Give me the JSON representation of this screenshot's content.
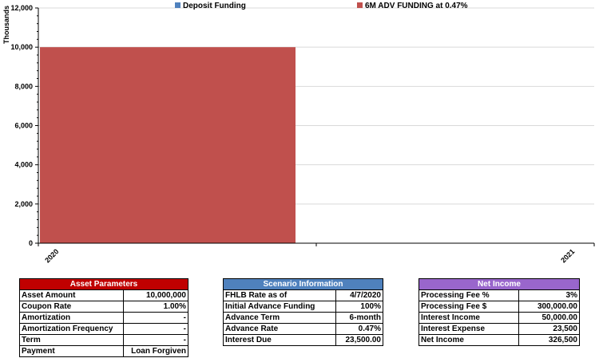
{
  "chart_data": {
    "type": "bar",
    "ylabel": "Thousands",
    "ylim": [
      0,
      12000
    ],
    "yticks": [
      "0",
      "2,000",
      "4,000",
      "6,000",
      "8,000",
      "10,000",
      "12,000"
    ],
    "categories": [
      "2020",
      "2021"
    ],
    "series": [
      {
        "name": "Deposit Funding",
        "color": "#4f81bd",
        "values": [
          0,
          0
        ]
      },
      {
        "name": "6M ADV FUNDING at 0.47%",
        "color": "#c0504d",
        "values": [
          10000,
          0
        ]
      }
    ]
  },
  "asset_parameters": {
    "title": "Asset Parameters",
    "rows": [
      {
        "label": "Asset Amount",
        "value": "10,000,000"
      },
      {
        "label": "Coupon Rate",
        "value": "1.00%"
      },
      {
        "label": "Amortization",
        "value": "-"
      },
      {
        "label": "Amortization Frequency",
        "value": "-"
      },
      {
        "label": "Term",
        "value": "-"
      },
      {
        "label": "Payment",
        "value": "Loan Forgiven"
      }
    ]
  },
  "scenario_information": {
    "title": "Scenario Information",
    "rows": [
      {
        "label": "FHLB Rate as of",
        "value": "4/7/2020"
      },
      {
        "label": "Initial Advance Funding",
        "value": "100%"
      },
      {
        "label": "Advance Term",
        "value": "6-month"
      },
      {
        "label": "Advance Rate",
        "value": "0.47%"
      },
      {
        "label": "Interest Due",
        "value": "23,500.00"
      }
    ]
  },
  "net_income": {
    "title": "Net Income",
    "rows": [
      {
        "label": "Processing Fee %",
        "value": "3%"
      },
      {
        "label": "Processing Fee $",
        "value": "300,000.00"
      },
      {
        "label": "Interest Income",
        "value": "50,000.00"
      },
      {
        "label": "Interest Expense",
        "value": "23,500"
      },
      {
        "label": "Net Income",
        "value": "326,500"
      }
    ]
  }
}
